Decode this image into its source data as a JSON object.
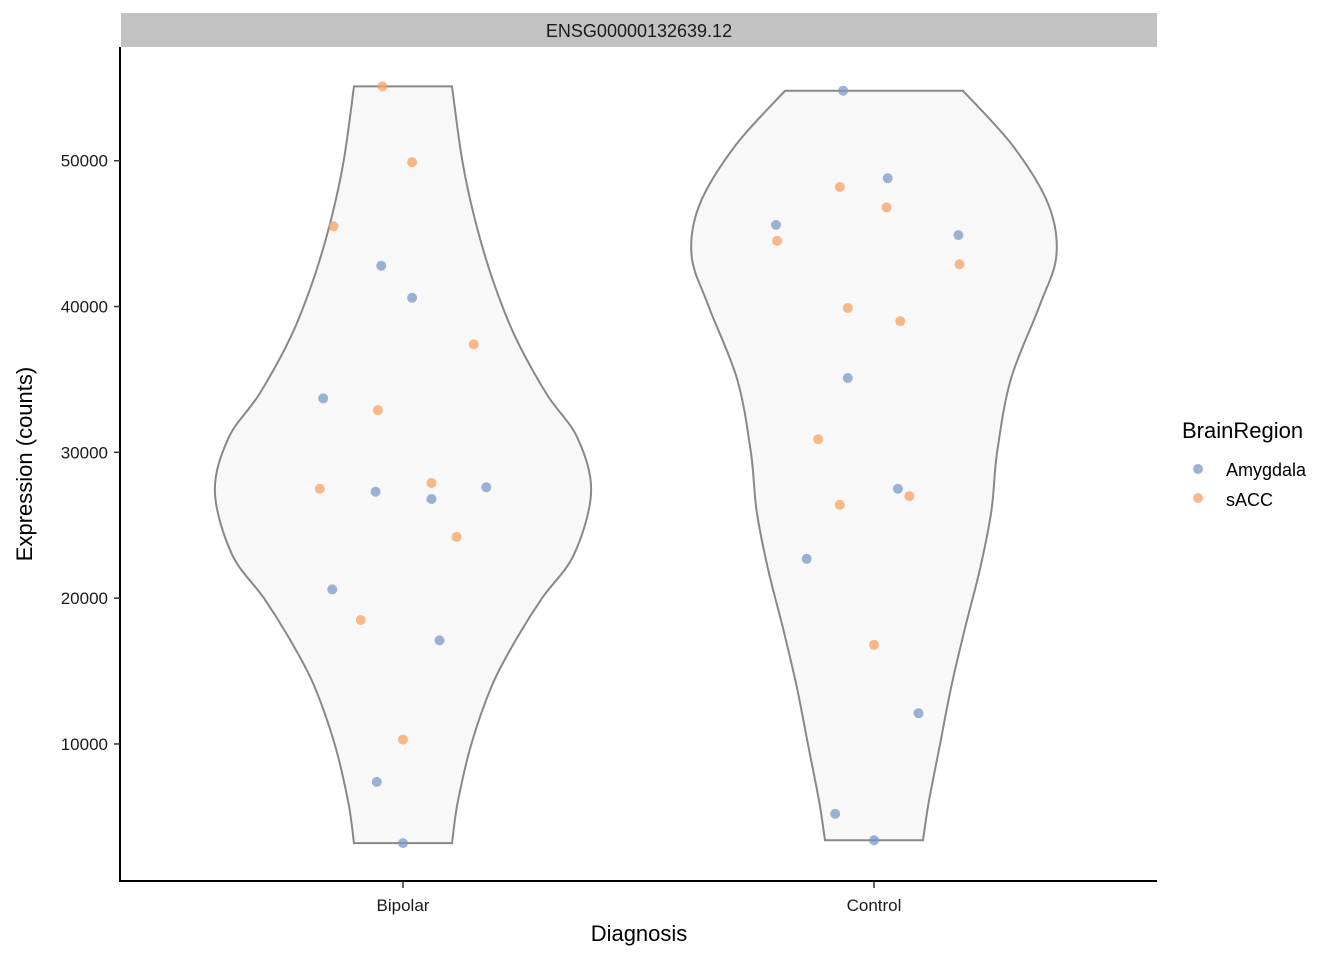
{
  "chart_data": {
    "type": "violin",
    "facet_label": "ENSG00000132639.12",
    "xlabel": "Diagnosis",
    "ylabel": "Expression (counts)",
    "categories": [
      "Bipolar",
      "Control"
    ],
    "ylim": [
      600,
      57800
    ],
    "yticks": [
      10000,
      20000,
      30000,
      40000,
      50000
    ],
    "ytick_labels": [
      "10000",
      "20000",
      "30000",
      "40000",
      "50000"
    ],
    "grid": false,
    "legend": {
      "title": "BrainRegion",
      "position": "right",
      "entries": [
        {
          "name": "Amygdala",
          "color": "#7b9ac9"
        },
        {
          "name": "sACC",
          "color": "#f7a161"
        }
      ]
    },
    "violins": [
      {
        "category": "Bipolar",
        "ymin": 3200,
        "ymax": 55100,
        "half_width_profile": [
          [
            3200,
            0.43
          ],
          [
            6000,
            0.48
          ],
          [
            10000,
            0.6
          ],
          [
            14000,
            0.78
          ],
          [
            17000,
            0.98
          ],
          [
            20000,
            1.22
          ],
          [
            23000,
            1.5
          ],
          [
            27300,
            1.65
          ],
          [
            31000,
            1.53
          ],
          [
            34000,
            1.26
          ],
          [
            38000,
            0.98
          ],
          [
            42000,
            0.78
          ],
          [
            46000,
            0.63
          ],
          [
            50000,
            0.52
          ],
          [
            55100,
            0.43
          ]
        ]
      },
      {
        "category": "Control",
        "ymin": 3400,
        "ymax": 54800,
        "half_width_profile": [
          [
            3400,
            0.43
          ],
          [
            6000,
            0.48
          ],
          [
            10000,
            0.58
          ],
          [
            14000,
            0.68
          ],
          [
            18000,
            0.8
          ],
          [
            22000,
            0.93
          ],
          [
            26000,
            1.03
          ],
          [
            30000,
            1.08
          ],
          [
            35000,
            1.2
          ],
          [
            40000,
            1.45
          ],
          [
            43500,
            1.6
          ],
          [
            47000,
            1.53
          ],
          [
            51000,
            1.22
          ],
          [
            54800,
            0.78
          ]
        ]
      }
    ],
    "series": [
      {
        "name": "Amygdala",
        "color": "#7b9ac9",
        "points": [
          {
            "x": "Bipolar",
            "jitter": -0.7,
            "y": 33700
          },
          {
            "x": "Bipolar",
            "jitter": -0.62,
            "y": 20600
          },
          {
            "x": "Bipolar",
            "jitter": -0.24,
            "y": 27300
          },
          {
            "x": "Bipolar",
            "jitter": -0.19,
            "y": 42800
          },
          {
            "x": "Bipolar",
            "jitter": -0.23,
            "y": 7400
          },
          {
            "x": "Bipolar",
            "jitter": 0.0,
            "y": 3200
          },
          {
            "x": "Bipolar",
            "jitter": 0.08,
            "y": 40600
          },
          {
            "x": "Bipolar",
            "jitter": 0.25,
            "y": 26800
          },
          {
            "x": "Bipolar",
            "jitter": 0.32,
            "y": 17100
          },
          {
            "x": "Bipolar",
            "jitter": 0.73,
            "y": 27600
          },
          {
            "x": "Control",
            "jitter": -0.86,
            "y": 45600
          },
          {
            "x": "Control",
            "jitter": -0.59,
            "y": 22700
          },
          {
            "x": "Control",
            "jitter": -0.27,
            "y": 54800
          },
          {
            "x": "Control",
            "jitter": -0.34,
            "y": 5200
          },
          {
            "x": "Control",
            "jitter": -0.23,
            "y": 35100
          },
          {
            "x": "Control",
            "jitter": 0.0,
            "y": 3400
          },
          {
            "x": "Control",
            "jitter": 0.12,
            "y": 48800
          },
          {
            "x": "Control",
            "jitter": 0.21,
            "y": 27500
          },
          {
            "x": "Control",
            "jitter": 0.39,
            "y": 12100
          },
          {
            "x": "Control",
            "jitter": 0.74,
            "y": 44900
          }
        ]
      },
      {
        "name": "sACC",
        "color": "#f7a161",
        "points": [
          {
            "x": "Bipolar",
            "jitter": -0.73,
            "y": 27500
          },
          {
            "x": "Bipolar",
            "jitter": -0.61,
            "y": 45500
          },
          {
            "x": "Bipolar",
            "jitter": -0.37,
            "y": 18500
          },
          {
            "x": "Bipolar",
            "jitter": -0.22,
            "y": 32900
          },
          {
            "x": "Bipolar",
            "jitter": -0.18,
            "y": 55100
          },
          {
            "x": "Bipolar",
            "jitter": 0.0,
            "y": 10300
          },
          {
            "x": "Bipolar",
            "jitter": 0.08,
            "y": 49900
          },
          {
            "x": "Bipolar",
            "jitter": 0.25,
            "y": 27900
          },
          {
            "x": "Bipolar",
            "jitter": 0.47,
            "y": 24200
          },
          {
            "x": "Bipolar",
            "jitter": 0.62,
            "y": 37400
          },
          {
            "x": "Control",
            "jitter": -0.85,
            "y": 44500
          },
          {
            "x": "Control",
            "jitter": -0.49,
            "y": 30900
          },
          {
            "x": "Control",
            "jitter": -0.3,
            "y": 48200
          },
          {
            "x": "Control",
            "jitter": -0.3,
            "y": 26400
          },
          {
            "x": "Control",
            "jitter": -0.23,
            "y": 39900
          },
          {
            "x": "Control",
            "jitter": 0.0,
            "y": 16800
          },
          {
            "x": "Control",
            "jitter": 0.11,
            "y": 46800
          },
          {
            "x": "Control",
            "jitter": 0.23,
            "y": 39000
          },
          {
            "x": "Control",
            "jitter": 0.31,
            "y": 27000
          },
          {
            "x": "Control",
            "jitter": 0.75,
            "y": 42900
          }
        ]
      }
    ]
  }
}
